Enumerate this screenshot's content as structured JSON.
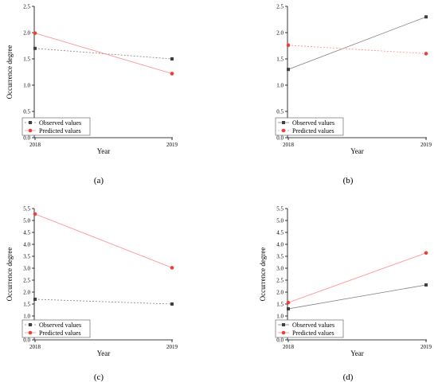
{
  "figure": {
    "panels": [
      "(a)",
      "(b)",
      "(c)",
      "(d)"
    ]
  },
  "chart_data": [
    {
      "type": "line",
      "panel_label": "(a)",
      "categories": [
        "2018",
        "2019"
      ],
      "xlabel": "Year",
      "ylabel": "Occurrence degree",
      "ylim": [
        0,
        2.5
      ],
      "yticks": [
        "0.0",
        "0.5",
        "1.0",
        "1.5",
        "2.0",
        "2.5"
      ],
      "legend_position": "bottom-left",
      "series": [
        {
          "name": "Observed values",
          "values": [
            1.7,
            1.5
          ],
          "color": "#7f7f7f",
          "marker": "square",
          "marker_color": "#404040",
          "dash": "2,2"
        },
        {
          "name": "Predicted values",
          "values": [
            1.99,
            1.22
          ],
          "color": "#ff8c8c",
          "marker": "circle",
          "marker_color": "#e8413a",
          "dash": ""
        }
      ]
    },
    {
      "type": "line",
      "panel_label": "(b)",
      "categories": [
        "2018",
        "2019"
      ],
      "xlabel": "Year",
      "ylabel": "",
      "ylim": [
        0,
        2.5
      ],
      "yticks": [
        "0.0",
        "0.5",
        "1.0",
        "1.5",
        "2.0",
        "2.5"
      ],
      "legend_position": "bottom-left",
      "series": [
        {
          "name": "Observed values",
          "values": [
            1.3,
            2.3
          ],
          "color": "#7f7f7f",
          "marker": "square",
          "marker_color": "#404040",
          "dash": ""
        },
        {
          "name": "Predicted values",
          "values": [
            1.76,
            1.6
          ],
          "color": "#ff8c8c",
          "marker": "circle",
          "marker_color": "#e8413a",
          "dash": "2,2"
        }
      ]
    },
    {
      "type": "line",
      "panel_label": "(c)",
      "categories": [
        "2018",
        "2019"
      ],
      "xlabel": "Year",
      "ylabel": "Occurrence degree",
      "ylim": [
        0,
        5.5
      ],
      "yticks": [
        "0.0",
        "0.5",
        "1.0",
        "1.5",
        "2.0",
        "2.5",
        "3.0",
        "3.5",
        "4.0",
        "4.5",
        "5.0",
        "5.5"
      ],
      "legend_position": "bottom-left",
      "series": [
        {
          "name": "Observed values",
          "values": [
            1.7,
            1.5
          ],
          "color": "#7f7f7f",
          "marker": "square",
          "marker_color": "#404040",
          "dash": "2,2"
        },
        {
          "name": "Predicted values",
          "values": [
            5.27,
            3.02
          ],
          "color": "#ff8c8c",
          "marker": "circle",
          "marker_color": "#e8413a",
          "dash": ""
        }
      ]
    },
    {
      "type": "line",
      "panel_label": "(d)",
      "categories": [
        "2018",
        "2019"
      ],
      "xlabel": "Year",
      "ylabel": "Occurrence degree",
      "ylim": [
        0,
        5.5
      ],
      "yticks": [
        "0.0",
        "0.5",
        "1.0",
        "1.5",
        "2.0",
        "2.5",
        "3.0",
        "3.5",
        "4.0",
        "4.5",
        "5.0",
        "5.5"
      ],
      "legend_position": "bottom-left",
      "series": [
        {
          "name": "Observed values",
          "values": [
            1.3,
            2.3
          ],
          "color": "#7f7f7f",
          "marker": "square",
          "marker_color": "#404040",
          "dash": ""
        },
        {
          "name": "Predicted values",
          "values": [
            1.56,
            3.64
          ],
          "color": "#ff8c8c",
          "marker": "circle",
          "marker_color": "#e8413a",
          "dash": ""
        }
      ]
    }
  ]
}
